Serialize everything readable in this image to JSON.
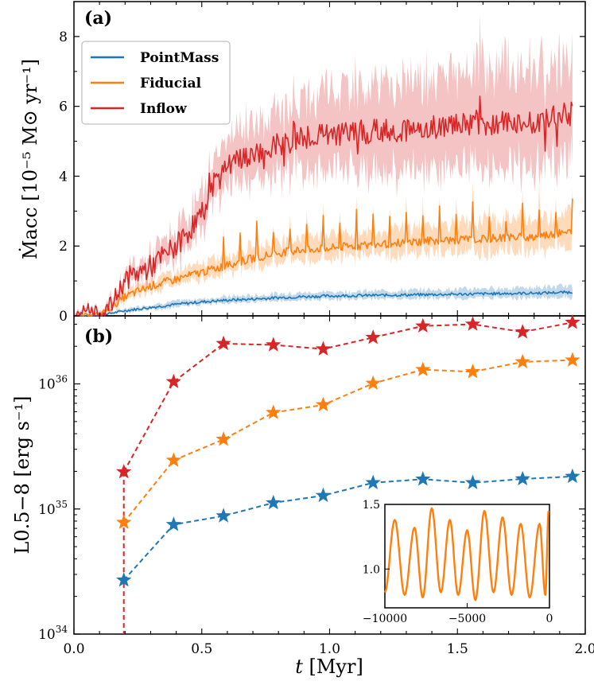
{
  "chart_data": [
    {
      "panel": "(a)",
      "type": "line",
      "ylabel": "Ṁacc [10⁻⁵ M⊙ yr⁻¹]",
      "ylim": [
        0,
        9
      ],
      "yticks": [
        0,
        2,
        4,
        6,
        8
      ],
      "xlim": [
        0.0,
        2.0
      ],
      "legend": {
        "placement": "top-left",
        "entries": [
          "PointMass",
          "Fiducial",
          "Inflow"
        ]
      },
      "series": [
        {
          "name": "PointMass",
          "color": "#1f77b4",
          "x": [
            0.0,
            0.1,
            0.15,
            0.2,
            0.3,
            0.4,
            0.5,
            0.6,
            0.7,
            0.8,
            0.9,
            1.0,
            1.2,
            1.4,
            1.6,
            1.8,
            1.95
          ],
          "y": [
            0.0,
            0.02,
            0.08,
            0.15,
            0.24,
            0.33,
            0.4,
            0.45,
            0.48,
            0.52,
            0.55,
            0.57,
            0.59,
            0.61,
            0.63,
            0.65,
            0.68
          ],
          "band": [
            0.01,
            0.02,
            0.03,
            0.05,
            0.07,
            0.08,
            0.08,
            0.09,
            0.09,
            0.1,
            0.1,
            0.1,
            0.11,
            0.12,
            0.13,
            0.14,
            0.15
          ]
        },
        {
          "name": "Fiducial",
          "color": "#ff7f0e",
          "x": [
            0.0,
            0.1,
            0.15,
            0.2,
            0.3,
            0.4,
            0.5,
            0.6,
            0.7,
            0.8,
            0.9,
            1.0,
            1.2,
            1.4,
            1.6,
            1.8,
            1.95
          ],
          "y": [
            0.0,
            0.05,
            0.25,
            0.55,
            0.85,
            1.05,
            1.25,
            1.45,
            1.65,
            1.8,
            1.9,
            1.95,
            2.05,
            2.15,
            2.2,
            2.28,
            2.4
          ],
          "band": [
            0.02,
            0.05,
            0.1,
            0.15,
            0.18,
            0.2,
            0.22,
            0.25,
            0.3,
            0.3,
            0.35,
            0.35,
            0.35,
            0.4,
            0.45,
            0.45,
            0.5
          ]
        },
        {
          "name": "Inflow",
          "color": "#d62728",
          "x": [
            0.0,
            0.05,
            0.1,
            0.15,
            0.2,
            0.3,
            0.4,
            0.5,
            0.55,
            0.6,
            0.7,
            0.8,
            0.9,
            1.0,
            1.2,
            1.4,
            1.6,
            1.8,
            1.95
          ],
          "y": [
            0.0,
            0.25,
            0.05,
            0.35,
            1.05,
            1.4,
            2.0,
            2.9,
            3.8,
            4.25,
            4.6,
            4.85,
            5.1,
            5.2,
            5.3,
            5.4,
            5.5,
            5.55,
            5.8
          ],
          "band": [
            0.05,
            0.1,
            0.08,
            0.15,
            0.2,
            0.3,
            0.4,
            0.5,
            0.6,
            0.7,
            0.8,
            0.9,
            1.0,
            1.1,
            1.2,
            1.3,
            1.4,
            1.4,
            1.4
          ]
        }
      ]
    },
    {
      "panel": "(b)",
      "type": "line",
      "marker": "star",
      "xlabel": "t [Myr]",
      "ylabel": "L0.5−8 [erg s⁻¹]",
      "xlim": [
        0.0,
        2.0
      ],
      "xticks": [
        "0.0",
        "0.5",
        "1.0",
        "1.5",
        "2.0"
      ],
      "yscale": "log",
      "ylim": [
        1e+34,
        3.5e+36
      ],
      "yticks": [
        "10^34",
        "10^35",
        "10^36"
      ],
      "x": [
        0.195,
        0.39,
        0.585,
        0.78,
        0.975,
        1.17,
        1.365,
        1.56,
        1.755,
        1.95
      ],
      "series": [
        {
          "name": "PointMass",
          "color": "#1f77b4",
          "values": [
            2.7e+34,
            7.5e+34,
            8.8e+34,
            1.12e+35,
            1.28e+35,
            1.62e+35,
            1.73e+35,
            1.62e+35,
            1.74e+35,
            1.82e+35
          ]
        },
        {
          "name": "Fiducial",
          "color": "#ff7f0e",
          "values": [
            7.8e+34,
            2.45e+35,
            3.6e+35,
            5.9e+35,
            6.8e+35,
            1.01e+36,
            1.3e+36,
            1.25e+36,
            1.5e+36,
            1.55e+36
          ]
        },
        {
          "name": "Inflow",
          "color": "#d62728",
          "values": [
            1.98e+35,
            1.04e+36,
            2.1e+36,
            2.05e+36,
            1.9e+36,
            2.35e+36,
            2.9e+36,
            3e+36,
            2.6e+36,
            3.1e+36
          ]
        }
      ],
      "inset": {
        "type": "line",
        "color": "#ff7f0e",
        "xlim": [
          -10000,
          0
        ],
        "ylim": [
          0.7,
          1.5
        ],
        "xticks": [
          "−10000",
          "−5000",
          "0"
        ],
        "yticks": [
          "1.0",
          "1.5"
        ],
        "peaks_x": [
          -9400,
          -8200,
          -7150,
          -6050,
          -5000,
          -3950,
          -2850,
          -1750,
          -600,
          -50
        ],
        "peaks_y": [
          1.38,
          1.32,
          1.47,
          1.38,
          1.3,
          1.45,
          1.4,
          1.35,
          1.35,
          1.45
        ],
        "troughs_x": [
          -10000,
          -8800,
          -7700,
          -6600,
          -5550,
          -4500,
          -3400,
          -2300,
          -1200,
          -250
        ],
        "troughs_y": [
          0.82,
          0.8,
          0.78,
          0.82,
          0.8,
          0.76,
          0.82,
          0.8,
          0.78,
          0.8
        ]
      }
    }
  ],
  "labels": {
    "panel_a": "(a)",
    "panel_b": "(b)",
    "xaxis_t": "t",
    "xaxis_unit": " [Myr]"
  }
}
